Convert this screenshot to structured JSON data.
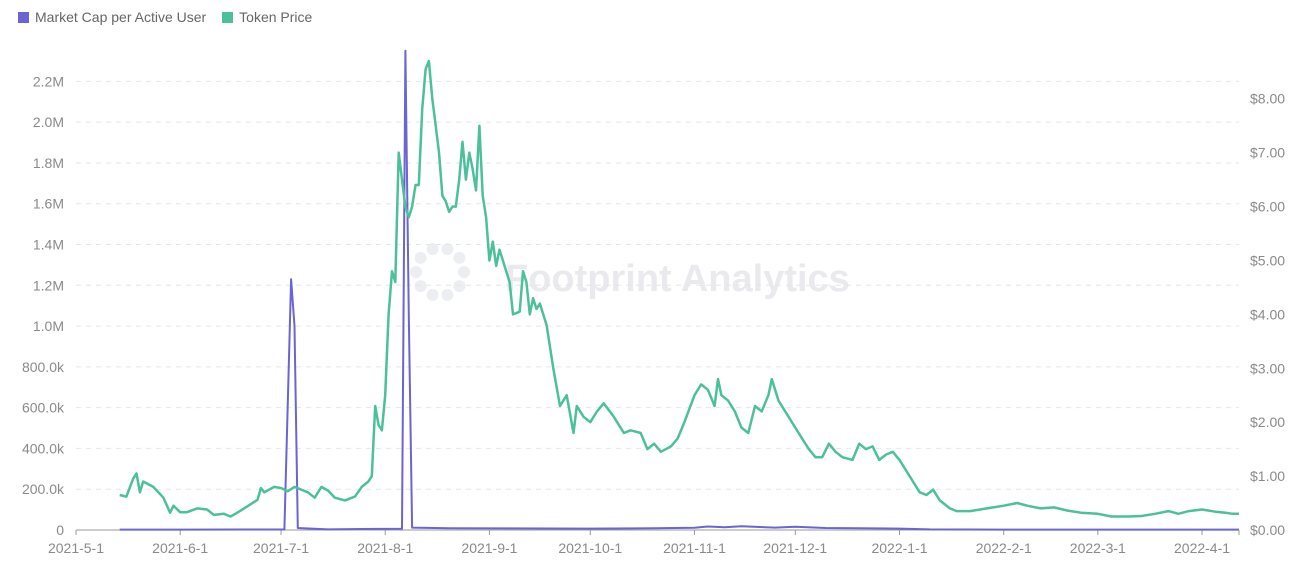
{
  "chart_data": {
    "type": "line",
    "legend": {
      "position": "top-left",
      "items": [
        {
          "label": "Market Cap per Active User",
          "color": "#6a64d6"
        },
        {
          "label": "Token Price",
          "color": "#4cc09a"
        }
      ]
    },
    "x_axis": {
      "type": "date",
      "range": [
        "2021-05-01",
        "2022-04-12"
      ],
      "ticks": [
        "2021-5-1",
        "2021-6-1",
        "2021-7-1",
        "2021-8-1",
        "2021-9-1",
        "2021-10-1",
        "2021-11-1",
        "2021-12-1",
        "2022-1-1",
        "2022-2-1",
        "2022-3-1",
        "2022-4-1"
      ]
    },
    "y_left": {
      "range": [
        0,
        2300000
      ],
      "ticks": [
        0,
        200000,
        400000,
        600000,
        800000,
        1000000,
        1200000,
        1400000,
        1600000,
        1800000,
        2000000,
        2200000
      ],
      "tick_labels": [
        "0",
        "200.0k",
        "400.0k",
        "600.0k",
        "800.0k",
        "1.0M",
        "1.2M",
        "1.4M",
        "1.6M",
        "1.8M",
        "2.0M",
        "2.2M"
      ]
    },
    "y_right": {
      "range": [
        0,
        8.7
      ],
      "ticks": [
        0,
        1,
        2,
        3,
        4,
        5,
        6,
        7,
        8
      ],
      "tick_labels": [
        "$0.00",
        "$1.00",
        "$2.00",
        "$3.00",
        "$4.00",
        "$5.00",
        "$6.00",
        "$7.00",
        "$8.00"
      ]
    },
    "grid": {
      "horizontal": true,
      "style": "dashed"
    },
    "watermark": "Footprint Analytics",
    "series": [
      {
        "name": "Market Cap per Active User",
        "axis": "left",
        "color": "#6a64d6",
        "points": [
          [
            "2021-05-14",
            2000
          ],
          [
            "2021-06-01",
            2000
          ],
          [
            "2021-06-20",
            2500
          ],
          [
            "2021-07-02",
            2500
          ],
          [
            "2021-07-04",
            1230000
          ],
          [
            "2021-07-05",
            1000000
          ],
          [
            "2021-07-06",
            10000
          ],
          [
            "2021-07-15",
            3000
          ],
          [
            "2021-07-25",
            5000
          ],
          [
            "2021-08-06",
            6000
          ],
          [
            "2021-08-07",
            2350000
          ],
          [
            "2021-08-08",
            1050000
          ],
          [
            "2021-08-09",
            12000
          ],
          [
            "2021-08-20",
            9000
          ],
          [
            "2021-09-05",
            8000
          ],
          [
            "2021-10-01",
            7000
          ],
          [
            "2021-10-20",
            9000
          ],
          [
            "2021-11-01",
            11000
          ],
          [
            "2021-11-05",
            17000
          ],
          [
            "2021-11-10",
            13000
          ],
          [
            "2021-11-15",
            18000
          ],
          [
            "2021-11-25",
            12000
          ],
          [
            "2021-12-01",
            16000
          ],
          [
            "2021-12-10",
            10000
          ],
          [
            "2021-12-20",
            9000
          ],
          [
            "2022-01-01",
            7000
          ],
          [
            "2022-01-10",
            3000
          ],
          [
            "2022-02-01",
            2000
          ],
          [
            "2022-03-01",
            2000
          ],
          [
            "2022-04-12",
            2000
          ]
        ]
      },
      {
        "name": "Token Price",
        "axis": "right",
        "color": "#4cc09a",
        "points": [
          [
            "2021-05-14",
            0.65
          ],
          [
            "2021-05-16",
            0.62
          ],
          [
            "2021-05-18",
            0.95
          ],
          [
            "2021-05-19",
            1.05
          ],
          [
            "2021-05-20",
            0.7
          ],
          [
            "2021-05-21",
            0.9
          ],
          [
            "2021-05-24",
            0.8
          ],
          [
            "2021-05-27",
            0.6
          ],
          [
            "2021-05-29",
            0.32
          ],
          [
            "2021-05-30",
            0.45
          ],
          [
            "2021-06-01",
            0.33
          ],
          [
            "2021-06-03",
            0.33
          ],
          [
            "2021-06-06",
            0.4
          ],
          [
            "2021-06-09",
            0.38
          ],
          [
            "2021-06-11",
            0.28
          ],
          [
            "2021-06-14",
            0.3
          ],
          [
            "2021-06-16",
            0.25
          ],
          [
            "2021-06-18",
            0.32
          ],
          [
            "2021-06-21",
            0.44
          ],
          [
            "2021-06-24",
            0.56
          ],
          [
            "2021-06-25",
            0.78
          ],
          [
            "2021-06-26",
            0.7
          ],
          [
            "2021-06-29",
            0.8
          ],
          [
            "2021-07-01",
            0.78
          ],
          [
            "2021-07-03",
            0.72
          ],
          [
            "2021-07-05",
            0.8
          ],
          [
            "2021-07-07",
            0.75
          ],
          [
            "2021-07-09",
            0.7
          ],
          [
            "2021-07-11",
            0.6
          ],
          [
            "2021-07-13",
            0.8
          ],
          [
            "2021-07-15",
            0.73
          ],
          [
            "2021-07-17",
            0.6
          ],
          [
            "2021-07-20",
            0.55
          ],
          [
            "2021-07-23",
            0.62
          ],
          [
            "2021-07-25",
            0.8
          ],
          [
            "2021-07-27",
            0.9
          ],
          [
            "2021-07-28",
            1.0
          ],
          [
            "2021-07-29",
            2.3
          ],
          [
            "2021-07-30",
            1.95
          ],
          [
            "2021-07-31",
            1.85
          ],
          [
            "2021-08-01",
            2.5
          ],
          [
            "2021-08-02",
            4.0
          ],
          [
            "2021-08-03",
            4.8
          ],
          [
            "2021-08-04",
            4.6
          ],
          [
            "2021-08-05",
            7.0
          ],
          [
            "2021-08-06",
            6.5
          ],
          [
            "2021-08-07",
            6.0
          ],
          [
            "2021-08-08",
            5.8
          ],
          [
            "2021-08-09",
            6.0
          ],
          [
            "2021-08-10",
            6.4
          ],
          [
            "2021-08-11",
            6.4
          ],
          [
            "2021-08-12",
            7.8
          ],
          [
            "2021-08-13",
            8.55
          ],
          [
            "2021-08-14",
            8.7
          ],
          [
            "2021-08-15",
            8.0
          ],
          [
            "2021-08-16",
            7.5
          ],
          [
            "2021-08-17",
            7.0
          ],
          [
            "2021-08-18",
            6.2
          ],
          [
            "2021-08-19",
            6.1
          ],
          [
            "2021-08-20",
            5.9
          ],
          [
            "2021-08-21",
            6.0
          ],
          [
            "2021-08-22",
            6.0
          ],
          [
            "2021-08-23",
            6.5
          ],
          [
            "2021-08-24",
            7.2
          ],
          [
            "2021-08-25",
            6.5
          ],
          [
            "2021-08-26",
            7.0
          ],
          [
            "2021-08-27",
            6.7
          ],
          [
            "2021-08-28",
            6.3
          ],
          [
            "2021-08-29",
            7.5
          ],
          [
            "2021-08-30",
            6.2
          ],
          [
            "2021-08-31",
            5.8
          ],
          [
            "2021-09-01",
            5.0
          ],
          [
            "2021-09-02",
            5.35
          ],
          [
            "2021-09-03",
            4.9
          ],
          [
            "2021-09-04",
            5.2
          ],
          [
            "2021-09-05",
            5.0
          ],
          [
            "2021-09-06",
            4.8
          ],
          [
            "2021-09-07",
            4.6
          ],
          [
            "2021-09-08",
            4.0
          ],
          [
            "2021-09-10",
            4.05
          ],
          [
            "2021-09-11",
            4.8
          ],
          [
            "2021-09-12",
            4.6
          ],
          [
            "2021-09-13",
            4.0
          ],
          [
            "2021-09-14",
            4.3
          ],
          [
            "2021-09-15",
            4.1
          ],
          [
            "2021-09-16",
            4.2
          ],
          [
            "2021-09-18",
            3.8
          ],
          [
            "2021-09-20",
            3.0
          ],
          [
            "2021-09-22",
            2.3
          ],
          [
            "2021-09-24",
            2.5
          ],
          [
            "2021-09-26",
            1.8
          ],
          [
            "2021-09-27",
            2.3
          ],
          [
            "2021-09-29",
            2.1
          ],
          [
            "2021-10-01",
            2.0
          ],
          [
            "2021-10-03",
            2.2
          ],
          [
            "2021-10-05",
            2.35
          ],
          [
            "2021-10-08",
            2.1
          ],
          [
            "2021-10-11",
            1.8
          ],
          [
            "2021-10-13",
            1.85
          ],
          [
            "2021-10-16",
            1.8
          ],
          [
            "2021-10-18",
            1.5
          ],
          [
            "2021-10-20",
            1.6
          ],
          [
            "2021-10-22",
            1.45
          ],
          [
            "2021-10-25",
            1.55
          ],
          [
            "2021-10-27",
            1.7
          ],
          [
            "2021-10-29",
            2.0
          ],
          [
            "2021-11-01",
            2.5
          ],
          [
            "2021-11-03",
            2.7
          ],
          [
            "2021-11-05",
            2.6
          ],
          [
            "2021-11-07",
            2.3
          ],
          [
            "2021-11-08",
            2.8
          ],
          [
            "2021-11-09",
            2.5
          ],
          [
            "2021-11-11",
            2.4
          ],
          [
            "2021-11-13",
            2.2
          ],
          [
            "2021-11-15",
            1.9
          ],
          [
            "2021-11-17",
            1.8
          ],
          [
            "2021-11-19",
            2.3
          ],
          [
            "2021-11-21",
            2.2
          ],
          [
            "2021-11-23",
            2.5
          ],
          [
            "2021-11-24",
            2.8
          ],
          [
            "2021-11-26",
            2.4
          ],
          [
            "2021-11-28",
            2.2
          ],
          [
            "2021-12-01",
            1.9
          ],
          [
            "2021-12-03",
            1.7
          ],
          [
            "2021-12-05",
            1.5
          ],
          [
            "2021-12-07",
            1.35
          ],
          [
            "2021-12-09",
            1.35
          ],
          [
            "2021-12-11",
            1.6
          ],
          [
            "2021-12-13",
            1.45
          ],
          [
            "2021-12-15",
            1.35
          ],
          [
            "2021-12-18",
            1.3
          ],
          [
            "2021-12-20",
            1.6
          ],
          [
            "2021-12-22",
            1.5
          ],
          [
            "2021-12-24",
            1.55
          ],
          [
            "2021-12-26",
            1.3
          ],
          [
            "2021-12-28",
            1.4
          ],
          [
            "2021-12-30",
            1.45
          ],
          [
            "2022-01-01",
            1.3
          ],
          [
            "2022-01-04",
            1.0
          ],
          [
            "2022-01-07",
            0.7
          ],
          [
            "2022-01-09",
            0.65
          ],
          [
            "2022-01-11",
            0.75
          ],
          [
            "2022-01-13",
            0.55
          ],
          [
            "2022-01-16",
            0.4
          ],
          [
            "2022-01-18",
            0.35
          ],
          [
            "2022-01-22",
            0.35
          ],
          [
            "2022-01-27",
            0.4
          ],
          [
            "2022-02-01",
            0.45
          ],
          [
            "2022-02-05",
            0.5
          ],
          [
            "2022-02-08",
            0.45
          ],
          [
            "2022-02-12",
            0.4
          ],
          [
            "2022-02-16",
            0.42
          ],
          [
            "2022-02-20",
            0.36
          ],
          [
            "2022-02-24",
            0.32
          ],
          [
            "2022-03-01",
            0.3
          ],
          [
            "2022-03-05",
            0.25
          ],
          [
            "2022-03-10",
            0.25
          ],
          [
            "2022-03-14",
            0.26
          ],
          [
            "2022-03-18",
            0.3
          ],
          [
            "2022-03-22",
            0.35
          ],
          [
            "2022-03-25",
            0.3
          ],
          [
            "2022-03-28",
            0.35
          ],
          [
            "2022-04-01",
            0.38
          ],
          [
            "2022-04-05",
            0.34
          ],
          [
            "2022-04-08",
            0.32
          ],
          [
            "2022-04-10",
            0.3
          ],
          [
            "2022-04-12",
            0.3
          ]
        ]
      }
    ]
  }
}
